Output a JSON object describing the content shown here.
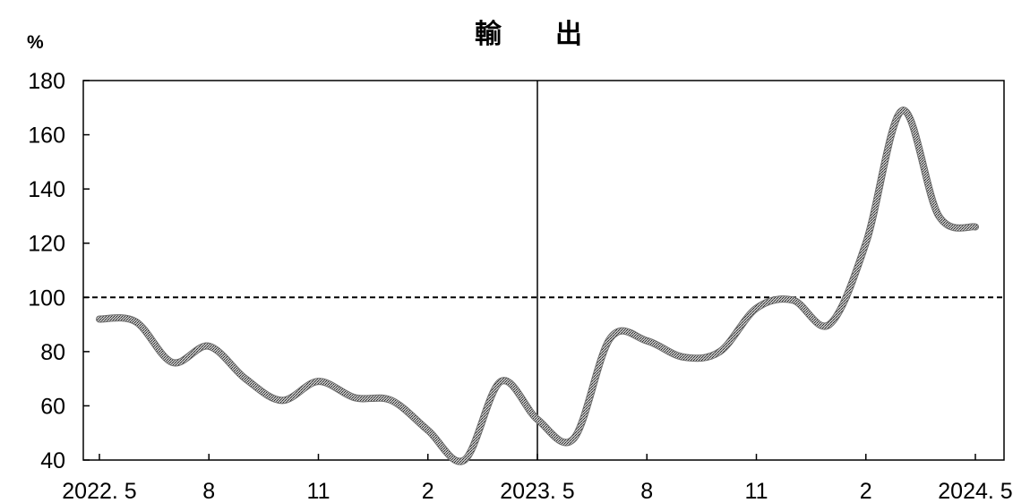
{
  "chart_data": {
    "type": "line",
    "title": "輸　　出",
    "ylabel": "%",
    "ylim": [
      40,
      180
    ],
    "yticks": [
      "40",
      "60",
      "80",
      "100",
      "120",
      "140",
      "160",
      "180"
    ],
    "x_tick_labels": [
      {
        "month_index": 0,
        "label": "2022. 5"
      },
      {
        "month_index": 3,
        "label": "8"
      },
      {
        "month_index": 6,
        "label": "11"
      },
      {
        "month_index": 9,
        "label": "2"
      },
      {
        "month_index": 12,
        "label": "2023. 5"
      },
      {
        "month_index": 15,
        "label": "8"
      },
      {
        "month_index": 18,
        "label": "11"
      },
      {
        "month_index": 21,
        "label": "2"
      },
      {
        "month_index": 24,
        "label": "2024. 5"
      }
    ],
    "reference_line": 100,
    "divider_at": "2023. 5",
    "series": [
      {
        "x": [
          "2022-05",
          "2022-06",
          "2022-07",
          "2022-08",
          "2022-09",
          "2022-10",
          "2022-11",
          "2022-12",
          "2023-01",
          "2023-02",
          "2023-03",
          "2023-04",
          "2023-05",
          "2023-06",
          "2023-07",
          "2023-08",
          "2023-09",
          "2023-10",
          "2023-11",
          "2023-12",
          "2024-01",
          "2024-02",
          "2024-03",
          "2024-04",
          "2024-05"
        ],
        "values": [
          92,
          91,
          76,
          82,
          70,
          62,
          69,
          63,
          62,
          51,
          40,
          69,
          55,
          48,
          85,
          84,
          78,
          80,
          96,
          99,
          90,
          120,
          169,
          130,
          126
        ]
      }
    ],
    "colors": {
      "line": "#8c8c8c",
      "axis": "#000000"
    }
  }
}
